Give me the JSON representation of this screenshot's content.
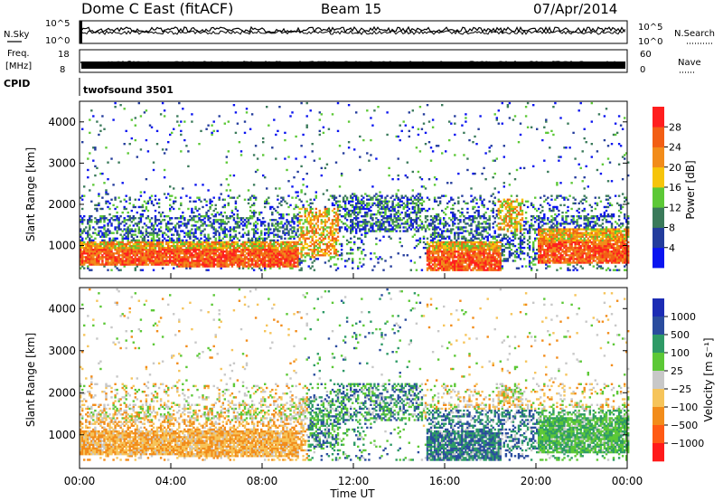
{
  "header": {
    "station": "Dome C East (fitACF)",
    "beam": "Beam 15",
    "date": "07/Apr/2014"
  },
  "top_panels": {
    "nsky_label": "N.Sky",
    "nsky_ticks": [
      "10^5",
      "10^0"
    ],
    "nsearch_label": "N.Search",
    "nsearch_ticks": [
      "10^5",
      "10^0"
    ],
    "freq_label": "Freq.",
    "freq_unit": "[MHz]",
    "freq_ticks": [
      "18",
      "8"
    ],
    "nave_label": "Nave",
    "nave_ticks": [
      "60",
      "0"
    ],
    "cpid_label": "CPID",
    "cpid_value": "twofsound 3501"
  },
  "colors": {
    "power": [
      "#0a14f0",
      "#233c9c",
      "#3a7a5a",
      "#5cc836",
      "#f6c40a",
      "#f28c1a",
      "#f25e14",
      "#ff1e1e"
    ],
    "velocity": [
      "#ff1a1a",
      "#ff5a14",
      "#f28c1a",
      "#f6c45a",
      "#c8c8c8",
      "#5cc836",
      "#2e9a66",
      "#2a4c9e",
      "#1c2cb4"
    ]
  },
  "chart_data": [
    {
      "type": "heatmap",
      "name": "power",
      "ylabel": "Slant Range [km]",
      "ylim": [
        200,
        4500
      ],
      "yticks": [
        1000,
        2000,
        3000,
        4000
      ],
      "xlim": [
        0,
        24
      ],
      "xticks": [
        "00:00",
        "04:00",
        "08:00",
        "12:00",
        "16:00",
        "20:00",
        "00:00"
      ],
      "colorbar": {
        "label": "Power [dB]",
        "range": [
          0,
          32
        ],
        "ticks": [
          "4",
          "8",
          "12",
          "16",
          "20",
          "24",
          "28"
        ]
      },
      "structures": [
        {
          "t": [
            0.0,
            9.6
          ],
          "r": [
            500,
            1100
          ],
          "level": "high"
        },
        {
          "t": [
            4.3,
            9.6
          ],
          "r": [
            450,
            1050
          ],
          "level": "high"
        },
        {
          "t": [
            9.6,
            11.3
          ],
          "r": [
            700,
            1900
          ],
          "level": "mid"
        },
        {
          "t": [
            15.2,
            18.4
          ],
          "r": [
            350,
            1100
          ],
          "level": "high"
        },
        {
          "t": [
            18.3,
            19.4
          ],
          "r": [
            1300,
            2100
          ],
          "level": "mid"
        },
        {
          "t": [
            20.0,
            24.0
          ],
          "r": [
            550,
            1400
          ],
          "level": "high"
        }
      ]
    },
    {
      "type": "heatmap",
      "name": "velocity",
      "ylabel": "Slant Range [km]",
      "ylim": [
        200,
        4500
      ],
      "yticks": [
        1000,
        2000,
        3000,
        4000
      ],
      "xlim": [
        0,
        24
      ],
      "xticks": [
        "00:00",
        "04:00",
        "08:00",
        "12:00",
        "16:00",
        "20:00",
        "00:00"
      ],
      "xlabel": "Time UT",
      "colorbar": {
        "label": "Velocity [m s⁻¹]",
        "ticks": [
          "1000",
          "500",
          "100",
          "25",
          "−25",
          "−100",
          "−500",
          "−1000"
        ]
      }
    }
  ]
}
